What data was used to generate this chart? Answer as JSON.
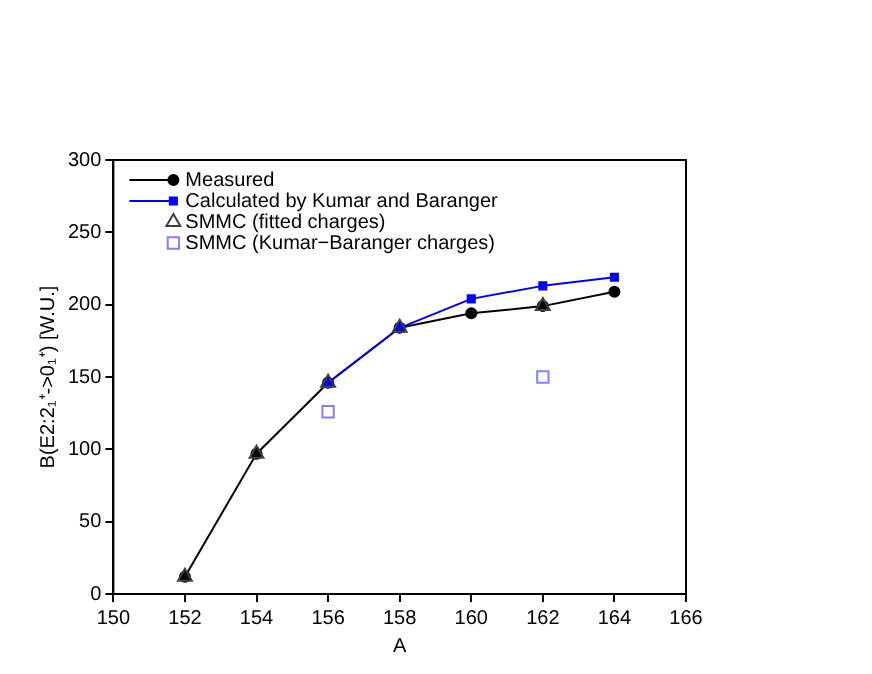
{
  "chart_data": {
    "type": "line",
    "xlabel": "A",
    "ylabel": "B(E2:2₁⁺->0₁⁺) [W.U.]",
    "xlim": [
      150,
      166
    ],
    "xticks": [
      150,
      152,
      154,
      156,
      158,
      160,
      162,
      164,
      166
    ],
    "ylim": [
      0,
      300
    ],
    "yticks": [
      0,
      50,
      100,
      150,
      200,
      250,
      300
    ],
    "grid": false,
    "legend": "top left",
    "series": [
      {
        "name": "Measured",
        "marker": "circle",
        "color": "#000000",
        "x": [
          152,
          154,
          156,
          158,
          160,
          162,
          164
        ],
        "values": [
          12,
          97,
          146,
          184,
          194,
          199,
          209
        ]
      },
      {
        "name": "Calculated by Kumar and Baranger",
        "marker": "square",
        "color": "#0000ff",
        "x": [
          156,
          158,
          160,
          162,
          164
        ],
        "values": [
          146,
          184,
          204,
          213,
          219
        ]
      },
      {
        "name": "SMMC (fitted charges)",
        "type": "scatter",
        "marker": "triangle",
        "color": "#404040",
        "x": [
          152,
          154,
          156,
          158,
          162
        ],
        "values": [
          12,
          97,
          146,
          184,
          199
        ]
      },
      {
        "name": "SMMC (Kumar−Baranger charges)",
        "type": "scatter",
        "marker": "square",
        "color": "#8080ff",
        "x": [
          156,
          162
        ],
        "values": [
          126,
          150
        ]
      }
    ]
  }
}
